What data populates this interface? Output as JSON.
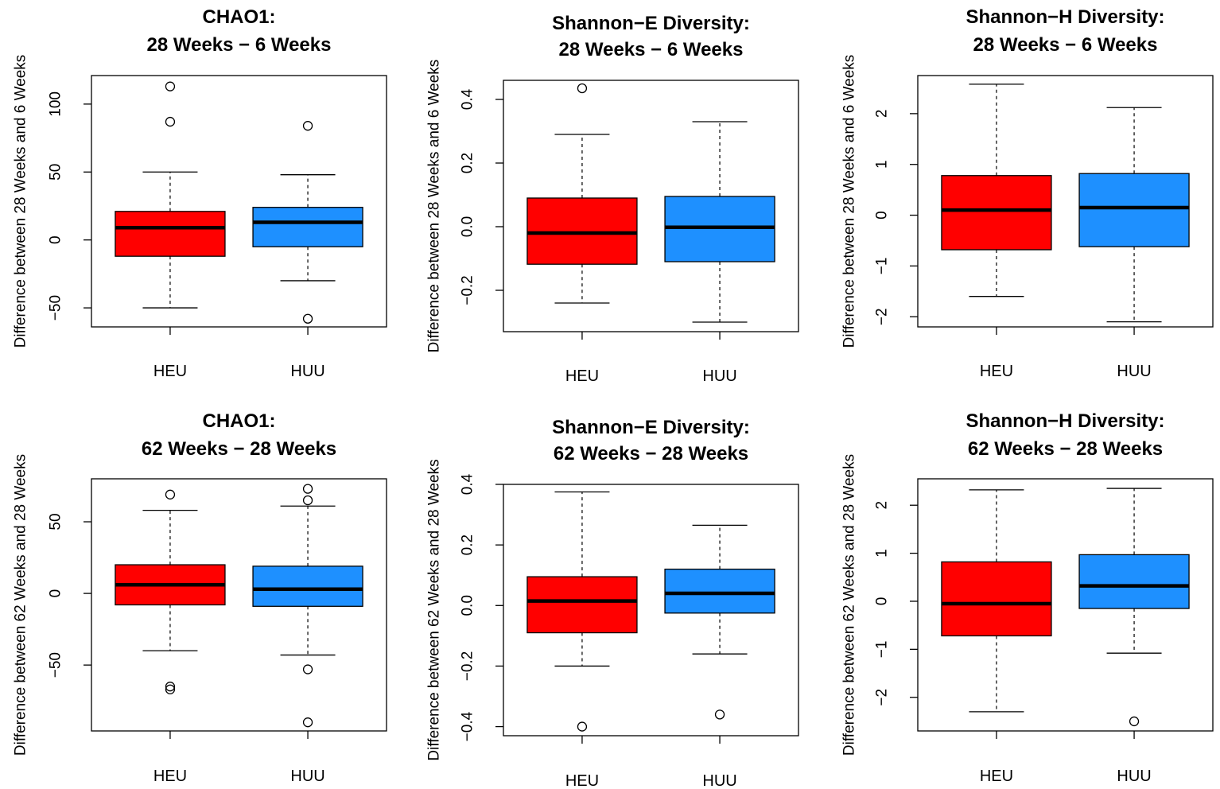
{
  "colors": {
    "HEU": "#ff0000",
    "HUU": "#1e90ff",
    "stroke": "#000000"
  },
  "chart_data": [
    {
      "type": "box",
      "title": [
        "CHAO1:",
        "28 Weeks − 6 Weeks"
      ],
      "ylabel": "Difference between 28 Weeks and 6 Weeks",
      "categories": [
        "HEU",
        "HUU"
      ],
      "ylim": [
        -64,
        121
      ],
      "yticks": [
        -50,
        0,
        50,
        100
      ],
      "ytick_labels": [
        "−50",
        "0",
        "50",
        "100"
      ],
      "boxes": [
        {
          "name": "HEU",
          "whisker_low": -50,
          "q1": -12,
          "median": 9,
          "q3": 21,
          "whisker_high": 50,
          "outliers": [
            113,
            87
          ]
        },
        {
          "name": "HUU",
          "whisker_low": -30,
          "q1": -5,
          "median": 13,
          "q3": 24,
          "whisker_high": 48,
          "outliers": [
            84,
            -58
          ]
        }
      ]
    },
    {
      "type": "box",
      "title": [
        "Shannon−E Diversity:",
        "28 Weeks − 6 Weeks"
      ],
      "ylabel": "Difference between 28 Weeks and 6 Weeks",
      "categories": [
        "HEU",
        "HUU"
      ],
      "ylim": [
        -0.33,
        0.46
      ],
      "yticks": [
        -0.2,
        0.0,
        0.2,
        0.4
      ],
      "ytick_labels": [
        "−0.2",
        "0.0",
        "0.2",
        "0.4"
      ],
      "boxes": [
        {
          "name": "HEU",
          "whisker_low": -0.24,
          "q1": -0.118,
          "median": -0.02,
          "q3": 0.09,
          "whisker_high": 0.29,
          "outliers": [
            0.435
          ]
        },
        {
          "name": "HUU",
          "whisker_low": -0.3,
          "q1": -0.11,
          "median": -0.002,
          "q3": 0.095,
          "whisker_high": 0.33,
          "outliers": []
        }
      ]
    },
    {
      "type": "box",
      "title": [
        "Shannon−H Diversity:",
        "28 Weeks − 6 Weeks"
      ],
      "ylabel": "Difference between 28 Weeks and 6 Weeks",
      "categories": [
        "HEU",
        "HUU"
      ],
      "ylim": [
        -2.2,
        2.75
      ],
      "yticks": [
        -2,
        -1,
        0,
        1,
        2
      ],
      "ytick_labels": [
        "−2",
        "−1",
        "0",
        "1",
        "2"
      ],
      "boxes": [
        {
          "name": "HEU",
          "whisker_low": -1.6,
          "q1": -0.68,
          "median": 0.1,
          "q3": 0.78,
          "whisker_high": 2.58,
          "outliers": []
        },
        {
          "name": "HUU",
          "whisker_low": -2.1,
          "q1": -0.62,
          "median": 0.15,
          "q3": 0.82,
          "whisker_high": 2.12,
          "outliers": []
        }
      ]
    },
    {
      "type": "box",
      "title": [
        "CHAO1:",
        "62 Weeks − 28 Weeks"
      ],
      "ylabel": "Difference between 62 Weeks and 28 Weeks",
      "categories": [
        "HEU",
        "HUU"
      ],
      "ylim": [
        -96,
        80
      ],
      "yticks": [
        -50,
        0,
        50
      ],
      "ytick_labels": [
        "−50",
        "0",
        "50"
      ],
      "boxes": [
        {
          "name": "HEU",
          "whisker_low": -40,
          "q1": -8,
          "median": 6,
          "q3": 20,
          "whisker_high": 58,
          "outliers": [
            69,
            -65,
            -67
          ]
        },
        {
          "name": "HUU",
          "whisker_low": -43,
          "q1": -9,
          "median": 3,
          "q3": 19,
          "whisker_high": 61,
          "outliers": [
            73,
            65,
            -53,
            -90
          ]
        }
      ]
    },
    {
      "type": "box",
      "title": [
        "Shannon−E Diversity:",
        "62 Weeks − 28 Weeks"
      ],
      "ylabel": "Difference between 62 Weeks and 28 Weeks",
      "categories": [
        "HEU",
        "HUU"
      ],
      "ylim": [
        -0.43,
        0.4
      ],
      "yticks": [
        -0.4,
        -0.2,
        0.0,
        0.2,
        0.4
      ],
      "ytick_labels": [
        "−0.4",
        "−0.2",
        "0.0",
        "0.2",
        "0.4"
      ],
      "boxes": [
        {
          "name": "HEU",
          "whisker_low": -0.2,
          "q1": -0.09,
          "median": 0.015,
          "q3": 0.095,
          "whisker_high": 0.375,
          "outliers": [
            -0.4
          ]
        },
        {
          "name": "HUU",
          "whisker_low": -0.16,
          "q1": -0.025,
          "median": 0.04,
          "q3": 0.12,
          "whisker_high": 0.265,
          "outliers": [
            -0.36
          ]
        }
      ]
    },
    {
      "type": "box",
      "title": [
        "Shannon−H Diversity:",
        "62 Weeks − 28 Weeks"
      ],
      "ylabel": "Difference between 62 Weeks and 28 Weeks",
      "categories": [
        "HEU",
        "HUU"
      ],
      "ylim": [
        -2.7,
        2.55
      ],
      "yticks": [
        -2,
        -1,
        0,
        1,
        2
      ],
      "ytick_labels": [
        "−2",
        "−1",
        "0",
        "1",
        "2"
      ],
      "boxes": [
        {
          "name": "HEU",
          "whisker_low": -2.3,
          "q1": -0.72,
          "median": -0.05,
          "q3": 0.82,
          "whisker_high": 2.32,
          "outliers": []
        },
        {
          "name": "HUU",
          "whisker_low": -1.08,
          "q1": -0.15,
          "median": 0.32,
          "q3": 0.97,
          "whisker_high": 2.35,
          "outliers": [
            -2.5
          ]
        }
      ]
    }
  ]
}
